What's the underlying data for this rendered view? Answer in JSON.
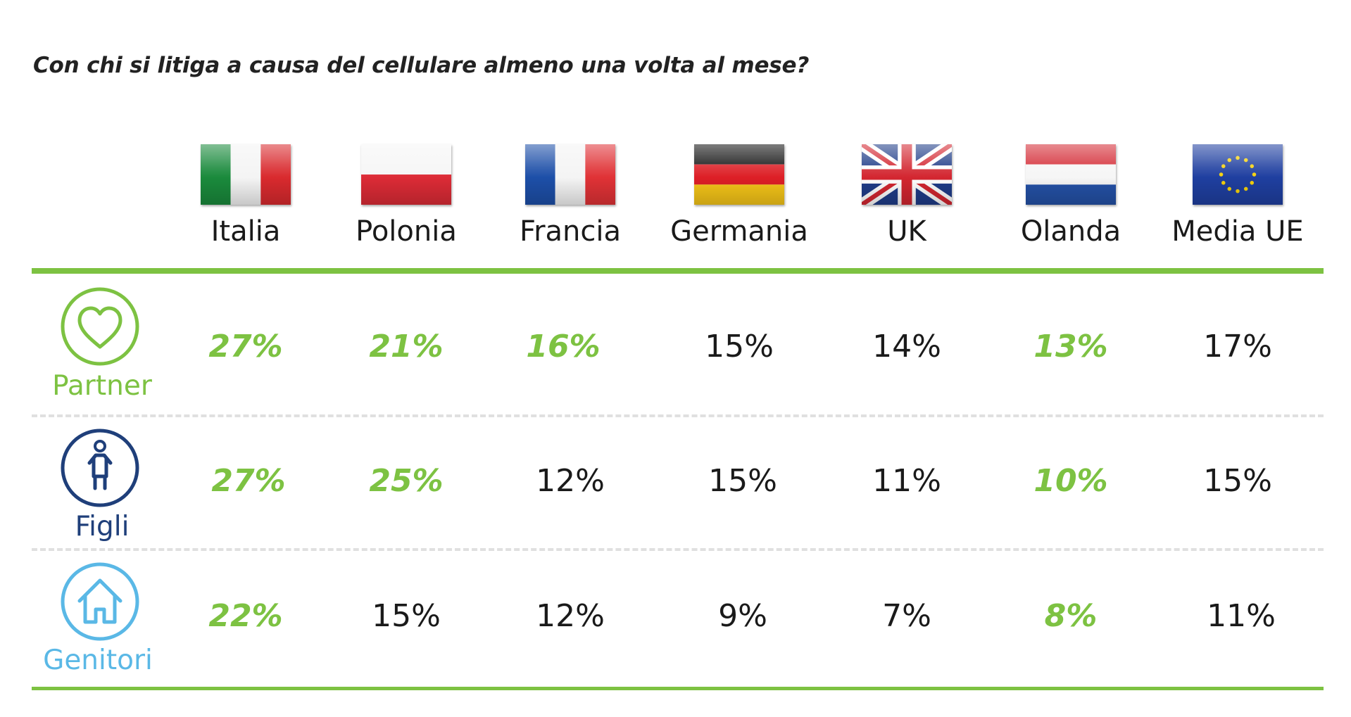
{
  "title": "Con chi si litiga a causa del cellulare almeno una volta al mese?",
  "chart_data": {
    "type": "table",
    "title": "Con chi si litiga a causa del cellulare almeno una volta al mese?",
    "columns": [
      "Italia",
      "Polonia",
      "Francia",
      "Germania",
      "UK",
      "Olanda",
      "Media UE"
    ],
    "rows": [
      {
        "label": "Partner",
        "icon": "heart-icon",
        "color": "#7dc242",
        "values": [
          "27%",
          "21%",
          "16%",
          "15%",
          "14%",
          "13%",
          "17%"
        ],
        "highlight": [
          true,
          true,
          true,
          false,
          false,
          true,
          false
        ]
      },
      {
        "label": "Figli",
        "icon": "baby-icon",
        "color": "#1f3f7a",
        "values": [
          "27%",
          "25%",
          "12%",
          "15%",
          "11%",
          "10%",
          "15%"
        ],
        "highlight": [
          true,
          true,
          false,
          false,
          false,
          true,
          false
        ]
      },
      {
        "label": "Genitori",
        "icon": "house-icon",
        "color": "#5ab8e6",
        "values": [
          "22%",
          "15%",
          "12%",
          "9%",
          "7%",
          "8%",
          "11%"
        ],
        "highlight": [
          true,
          false,
          false,
          false,
          false,
          true,
          false
        ]
      }
    ]
  },
  "flags": [
    "italy-flag-icon",
    "poland-flag-icon",
    "france-flag-icon",
    "germany-flag-icon",
    "uk-flag-icon",
    "netherlands-flag-icon",
    "eu-flag-icon"
  ],
  "colors": {
    "accent": "#7dc242",
    "text": "#1a1a1a",
    "divider": "#e0e0e0"
  }
}
